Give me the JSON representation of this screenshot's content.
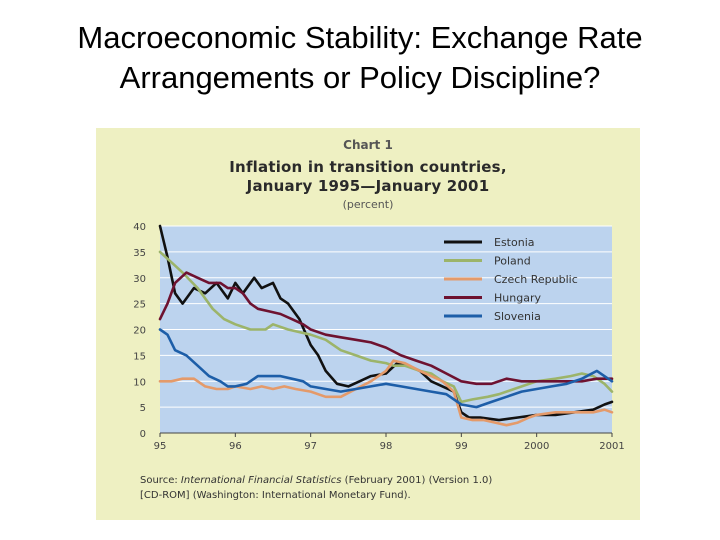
{
  "slide": {
    "title_line1": "Macroeconomic Stability: Exchange Rate",
    "title_line2": "Arrangements or Policy Discipline?"
  },
  "chart_data": {
    "type": "line",
    "chart_number": "Chart 1",
    "title_line1": "Inflation in transition countries,",
    "title_line2": "January 1995—January 2001",
    "unit": "(percent)",
    "xlabel": "",
    "ylabel": "",
    "xlim": [
      1995,
      2001
    ],
    "ylim": [
      0,
      40
    ],
    "x_ticks": [
      {
        "value": 1995,
        "label": "95"
      },
      {
        "value": 1996,
        "label": "96"
      },
      {
        "value": 1997,
        "label": "97"
      },
      {
        "value": 1998,
        "label": "98"
      },
      {
        "value": 1999,
        "label": "99"
      },
      {
        "value": 2000,
        "label": "2000"
      },
      {
        "value": 2001,
        "label": "2001"
      }
    ],
    "y_ticks": [
      0,
      5,
      10,
      15,
      20,
      25,
      30,
      35,
      40
    ],
    "legend_position": "top-right",
    "series": [
      {
        "name": "Estonia",
        "color": "#111111",
        "x": [
          1995.0,
          1995.1,
          1995.2,
          1995.3,
          1995.45,
          1995.6,
          1995.75,
          1995.9,
          1996.0,
          1996.1,
          1996.25,
          1996.35,
          1996.5,
          1996.6,
          1996.7,
          1996.85,
          1997.0,
          1997.1,
          1997.2,
          1997.35,
          1997.5,
          1997.65,
          1997.8,
          1998.0,
          1998.15,
          1998.3,
          1998.45,
          1998.6,
          1998.75,
          1998.9,
          1999.0,
          1999.1,
          1999.25,
          1999.5,
          1999.75,
          2000.0,
          2000.25,
          2000.5,
          2000.75,
          2000.9,
          2001.0
        ],
        "y": [
          40,
          34,
          27,
          25,
          28,
          27,
          29,
          26,
          29,
          27,
          30,
          28,
          29,
          26,
          25,
          22,
          17,
          15,
          12,
          9.5,
          9,
          10,
          11,
          11.5,
          13.5,
          13,
          12,
          10,
          9,
          8,
          4,
          3,
          3,
          2.5,
          3,
          3.5,
          3.5,
          4,
          4.5,
          5.5,
          6
        ]
      },
      {
        "name": "Poland",
        "color": "#9cb46a",
        "x": [
          1995.0,
          1995.15,
          1995.3,
          1995.5,
          1995.7,
          1995.85,
          1996.0,
          1996.2,
          1996.4,
          1996.5,
          1996.7,
          1996.85,
          1997.0,
          1997.2,
          1997.4,
          1997.6,
          1997.8,
          1998.0,
          1998.1,
          1998.25,
          1998.45,
          1998.6,
          1998.75,
          1998.9,
          1999.0,
          1999.15,
          1999.35,
          1999.5,
          1999.7,
          2000.0,
          2000.25,
          2000.45,
          2000.6,
          2000.75,
          2000.9,
          2001.0
        ],
        "y": [
          35,
          33,
          31,
          28,
          24,
          22,
          21,
          20,
          20,
          21,
          20,
          19.5,
          19,
          18,
          16,
          15,
          14,
          13.5,
          13,
          13,
          12,
          11.5,
          10,
          9,
          6,
          6.5,
          7,
          7.5,
          8.5,
          10,
          10.5,
          11,
          11.5,
          11,
          9.5,
          8
        ]
      },
      {
        "name": "Czech Republic",
        "color": "#e49a6a",
        "x": [
          1995.0,
          1995.15,
          1995.3,
          1995.45,
          1995.6,
          1995.75,
          1995.9,
          1996.0,
          1996.2,
          1996.35,
          1996.5,
          1996.65,
          1996.8,
          1997.0,
          1997.2,
          1997.4,
          1997.6,
          1997.8,
          1998.0,
          1998.1,
          1998.25,
          1998.45,
          1998.6,
          1998.75,
          1998.9,
          1999.0,
          1999.15,
          1999.3,
          1999.45,
          1999.6,
          1999.75,
          1999.9,
          2000.0,
          2000.25,
          2000.5,
          2000.75,
          2000.9,
          2001.0
        ],
        "y": [
          10,
          10,
          10.5,
          10.5,
          9,
          8.5,
          8.5,
          9,
          8.5,
          9,
          8.5,
          9,
          8.5,
          8,
          7,
          7,
          8.5,
          10,
          12,
          14,
          13.5,
          12,
          11,
          10,
          8,
          3,
          2.5,
          2.5,
          2,
          1.5,
          2,
          3,
          3.5,
          4,
          4,
          4,
          4.5,
          4
        ]
      },
      {
        "name": "Hungary",
        "color": "#6e1230",
        "x": [
          1995.0,
          1995.1,
          1995.2,
          1995.35,
          1995.5,
          1995.65,
          1995.8,
          1995.9,
          1996.0,
          1996.1,
          1996.2,
          1996.3,
          1996.45,
          1996.6,
          1996.75,
          1996.9,
          1997.0,
          1997.2,
          1997.4,
          1997.6,
          1997.8,
          1998.0,
          1998.2,
          1998.4,
          1998.6,
          1998.8,
          1999.0,
          1999.2,
          1999.4,
          1999.6,
          1999.8,
          2000.0,
          2000.2,
          2000.4,
          2000.6,
          2000.8,
          2001.0
        ],
        "y": [
          22,
          25,
          29,
          31,
          30,
          29,
          29,
          28,
          28,
          27,
          25,
          24,
          23.5,
          23,
          22,
          21,
          20,
          19,
          18.5,
          18,
          17.5,
          16.5,
          15,
          14,
          13,
          11.5,
          10,
          9.5,
          9.5,
          10.5,
          10,
          10,
          10,
          10,
          10,
          10.5,
          10.5
        ]
      },
      {
        "name": "Slovenia",
        "color": "#1d5ea8",
        "x": [
          1995.0,
          1995.1,
          1995.2,
          1995.35,
          1995.5,
          1995.65,
          1995.8,
          1995.9,
          1996.0,
          1996.15,
          1996.3,
          1996.45,
          1996.6,
          1996.75,
          1996.9,
          1997.0,
          1997.2,
          1997.4,
          1997.6,
          1997.8,
          1998.0,
          1998.2,
          1998.4,
          1998.6,
          1998.8,
          1999.0,
          1999.2,
          1999.4,
          1999.6,
          1999.8,
          2000.0,
          2000.2,
          2000.4,
          2000.6,
          2000.8,
          2001.0
        ],
        "y": [
          20,
          19,
          16,
          15,
          13,
          11,
          10,
          9,
          9,
          9.5,
          11,
          11,
          11,
          10.5,
          10,
          9,
          8.5,
          8,
          8.5,
          9,
          9.5,
          9,
          8.5,
          8,
          7.5,
          5.5,
          5,
          6,
          7,
          8,
          8.5,
          9,
          9.5,
          10.5,
          12,
          10
        ]
      }
    ],
    "source": {
      "prefix": "Source: ",
      "title": "International Financial Statistics",
      "line1_rest": " (February 2001) (Version 1.0)",
      "line2": "[CD-ROM] (Washington: International Monetary Fund)."
    }
  }
}
